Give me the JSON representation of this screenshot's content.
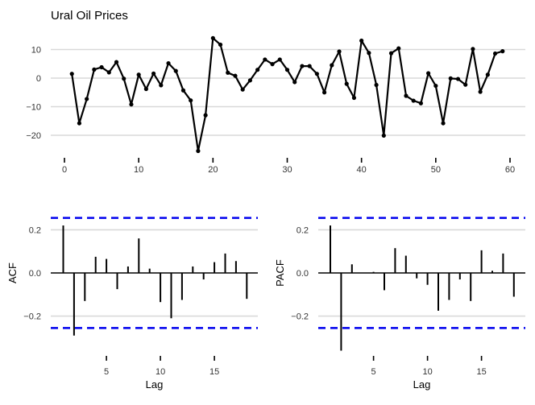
{
  "colors": {
    "series": "#000000",
    "ci": "#0000ee",
    "grid": "#d9d9d9"
  },
  "chart_data": [
    {
      "type": "line",
      "title": "Ural Oil Prices",
      "xlabel": "",
      "ylabel": "",
      "x": [
        1,
        2,
        3,
        4,
        5,
        6,
        7,
        8,
        9,
        10,
        11,
        12,
        13,
        14,
        15,
        16,
        17,
        18,
        19,
        20,
        21,
        22,
        23,
        24,
        25,
        26,
        27,
        28,
        29,
        30,
        31,
        32,
        33,
        34,
        35,
        36,
        37,
        38,
        39,
        40,
        41,
        42,
        43,
        44,
        45,
        46,
        47,
        48,
        49,
        50,
        51,
        52,
        53,
        54,
        55,
        56,
        57,
        58,
        59
      ],
      "values": [
        1.5,
        -15.8,
        -7.3,
        3.0,
        3.8,
        2.0,
        5.6,
        -0.2,
        -9.2,
        1.2,
        -3.8,
        1.6,
        -2.5,
        5.2,
        2.5,
        -4.3,
        -7.8,
        -25.5,
        -13.0,
        14.0,
        11.7,
        1.9,
        0.8,
        -4.0,
        -0.8,
        2.9,
        6.5,
        4.9,
        6.5,
        2.9,
        -1.4,
        4.2,
        4.2,
        1.5,
        -5.0,
        4.5,
        9.3,
        -2.0,
        -6.9,
        13.1,
        8.8,
        -2.4,
        -20.1,
        8.7,
        10.4,
        -6.2,
        -7.9,
        -8.8,
        1.7,
        -2.7,
        -15.8,
        -0.1,
        -0.3,
        -2.3,
        10.2,
        -4.8,
        1.2,
        8.6,
        9.4
      ],
      "xlim": [
        0,
        60
      ],
      "ylim": [
        -28,
        16
      ],
      "x_ticks": [
        "0",
        "10",
        "20",
        "30",
        "40",
        "50",
        "60"
      ],
      "y_ticks": [
        "10",
        "0",
        "−10",
        "−20"
      ],
      "grid": true,
      "markers": true
    },
    {
      "type": "bar",
      "title": "",
      "xlabel": "Lag",
      "ylabel": "ACF",
      "lags": [
        1,
        2,
        3,
        4,
        5,
        6,
        7,
        8,
        9,
        10,
        11,
        12,
        13,
        14,
        15,
        16,
        17,
        18
      ],
      "values": [
        0.22,
        -0.29,
        -0.13,
        0.075,
        0.065,
        -0.075,
        0.03,
        0.16,
        0.02,
        -0.135,
        -0.21,
        -0.125,
        0.03,
        -0.03,
        0.05,
        0.09,
        0.055,
        -0.12
      ],
      "confidence_bounds": [
        -0.255,
        0.255
      ],
      "xlim": [
        0,
        19
      ],
      "ylim": [
        -0.3,
        0.27
      ],
      "x_ticks": [
        "5",
        "10",
        "15"
      ],
      "y_ticks": [
        "0.2",
        "0.0",
        "−0.2"
      ],
      "grid": true
    },
    {
      "type": "bar",
      "title": "",
      "xlabel": "Lag",
      "ylabel": "PACF",
      "lags": [
        1,
        2,
        3,
        4,
        5,
        6,
        7,
        8,
        9,
        10,
        11,
        12,
        13,
        14,
        15,
        16,
        17,
        18
      ],
      "values": [
        0.22,
        -0.36,
        0.04,
        0.0,
        0.005,
        -0.08,
        0.115,
        0.08,
        -0.025,
        -0.055,
        -0.175,
        -0.125,
        -0.03,
        -0.13,
        0.105,
        0.01,
        0.09,
        -0.11
      ],
      "confidence_bounds": [
        -0.255,
        0.255
      ],
      "xlim": [
        0,
        19
      ],
      "ylim": [
        -0.36,
        0.27
      ],
      "x_ticks": [
        "5",
        "10",
        "15"
      ],
      "y_ticks": [
        "0.2",
        "0.0",
        "−0.2"
      ],
      "grid": true
    }
  ]
}
